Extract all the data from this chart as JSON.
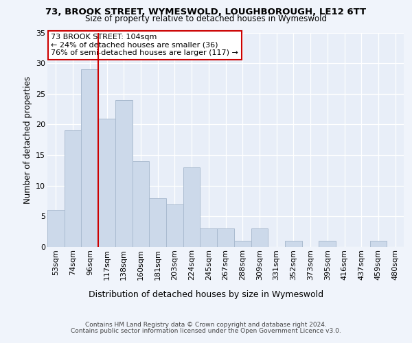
{
  "title_line1": "73, BROOK STREET, WYMESWOLD, LOUGHBOROUGH, LE12 6TT",
  "title_line2": "Size of property relative to detached houses in Wymeswold",
  "xlabel": "Distribution of detached houses by size in Wymeswold",
  "ylabel": "Number of detached properties",
  "bar_labels": [
    "53sqm",
    "74sqm",
    "96sqm",
    "117sqm",
    "138sqm",
    "160sqm",
    "181sqm",
    "203sqm",
    "224sqm",
    "245sqm",
    "267sqm",
    "288sqm",
    "309sqm",
    "331sqm",
    "352sqm",
    "373sqm",
    "395sqm",
    "416sqm",
    "437sqm",
    "459sqm",
    "480sqm"
  ],
  "bar_values": [
    6,
    19,
    29,
    21,
    24,
    14,
    8,
    7,
    13,
    3,
    3,
    1,
    3,
    0,
    1,
    0,
    1,
    0,
    0,
    1,
    0
  ],
  "bar_color": "#ccd9ea",
  "bar_edge_color": "#aabbd0",
  "vline_x": 2.5,
  "vline_color": "#cc0000",
  "annotation_text": "73 BROOK STREET: 104sqm\n← 24% of detached houses are smaller (36)\n76% of semi-detached houses are larger (117) →",
  "annotation_box_color": "#ffffff",
  "annotation_box_edge": "#cc0000",
  "ylim": [
    0,
    35
  ],
  "yticks": [
    0,
    5,
    10,
    15,
    20,
    25,
    30,
    35
  ],
  "footer_line1": "Contains HM Land Registry data © Crown copyright and database right 2024.",
  "footer_line2": "Contains public sector information licensed under the Open Government Licence v3.0.",
  "bg_color": "#f0f4fb",
  "plot_bg_color": "#e8eef8",
  "grid_color": "#ffffff"
}
